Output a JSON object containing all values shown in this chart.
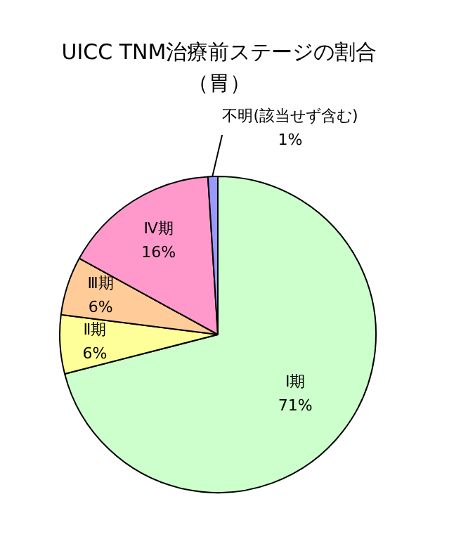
{
  "chart_data": {
    "type": "pie",
    "title": "UICC TNM治療前ステージの割合（胃）",
    "categories": [
      "Ⅰ期",
      "Ⅱ期",
      "Ⅲ期",
      "Ⅳ期",
      "不明(該当せず含む)"
    ],
    "values": [
      71,
      6,
      6,
      16,
      1
    ],
    "colors": [
      "#ccffcc",
      "#ffff99",
      "#ffcc99",
      "#ff99cc",
      "#9999ff"
    ],
    "value_labels": [
      "71%",
      "6%",
      "6%",
      "16%",
      "1%"
    ],
    "legend": false
  }
}
